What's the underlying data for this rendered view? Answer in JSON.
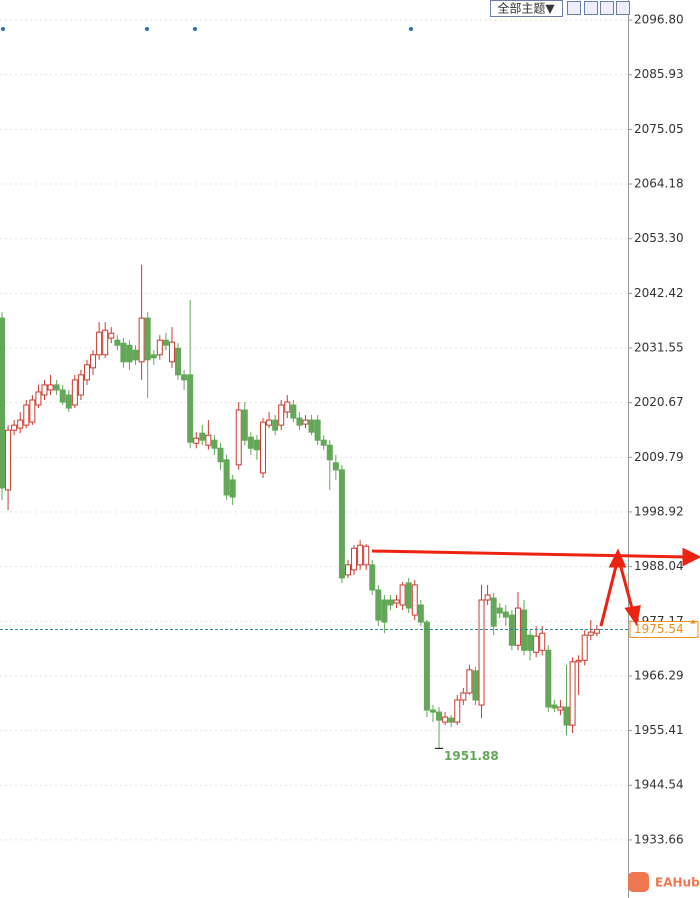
{
  "toolbar": {
    "theme_button": "全部主题▼"
  },
  "watermark": "EAHub",
  "chart_data": {
    "type": "candlestick",
    "up_color": "#cc3a2e",
    "down_color": "#62a858",
    "grid": true,
    "ylim": [
      1922.1,
      2100.8
    ],
    "yticks": [
      {
        "value": 2096.8,
        "label": "2096.80"
      },
      2085.93,
      2075.05,
      2064.18,
      {
        "value": 2053.3,
        "label": "2053.30"
      },
      2042.42,
      2031.55,
      2020.67,
      2009.79,
      1998.92,
      1988.04,
      1977.17,
      1966.29,
      1955.41,
      1944.54,
      1933.66
    ],
    "current_price": 1975.54,
    "current_price_color": "#f08c1c",
    "low_annotation": 1951.88,
    "open": [
      2037.5,
      2003.3,
      2015.2,
      2015.6,
      2016.2,
      2016.8,
      2020.2,
      2022.2,
      2023.2,
      2024.2,
      2023.2,
      2022.2,
      2020.2,
      2022.2,
      2025.2,
      2027.6,
      2030.2,
      2030.2,
      2033.5,
      2033.1,
      2032.5,
      2032.1,
      2031.1,
      2028.8,
      2037.5,
      2030.2,
      2030.2,
      2033.1,
      2028.8,
      2031.5,
      2026.2,
      2026.2,
      2012.6,
      2014.6,
      2012.2,
      2013.2,
      2011.6,
      2009.3,
      2005.3,
      2008.3,
      2019.2,
      2013.8,
      2013.2,
      2006.7,
      2016.2,
      2017.2,
      2016.2,
      2018.8,
      2020.2,
      2017.6,
      2016.4,
      2017.2,
      2017.2,
      2013.2,
      2012.2,
      2008.7,
      2007.3,
      1986.4,
      1987.4,
      1988.4,
      1988.4,
      1988.4,
      1983.4,
      1981.4,
      1981.4,
      1980.8,
      1980.4,
      1984.8,
      1978.4,
      1980.4,
      1977.0,
      1959.5,
      1959.1,
      1957.1,
      1957.9,
      1957.1,
      1961.5,
      1962.9,
      1967.3,
      1960.5,
      1981.4,
      1981.8,
      1979.8,
      1979.0,
      1978.4,
      1972.4,
      1979.4,
      1974.4,
      1971.0,
      1971.4,
      1971.4,
      1960.5,
      1959.5,
      1960.1,
      1956.5,
      1969.1,
      1969.4,
      1974.4,
      1974.8
    ],
    "high": [
      2038.7,
      2016.2,
      2017.2,
      2018.8,
      2021.2,
      2022.2,
      2024.2,
      2025.2,
      2026.2,
      2025.2,
      2024.2,
      2023.2,
      2026.2,
      2027.2,
      2029.2,
      2031.1,
      2036.7,
      2036.7,
      2035.7,
      2034.1,
      2033.5,
      2033.1,
      2032.1,
      2048.1,
      2038.7,
      2031.1,
      2034.1,
      2034.5,
      2035.7,
      2032.5,
      2027.2,
      2041.1,
      2014.8,
      2016.2,
      2017.2,
      2014.2,
      2012.6,
      2010.3,
      2006.3,
      2020.8,
      2020.8,
      2014.8,
      2014.2,
      2017.6,
      2018.8,
      2018.2,
      2021.2,
      2022.2,
      2021.2,
      2018.8,
      2018.2,
      2018.2,
      2018.2,
      2014.2,
      2013.2,
      2010.3,
      2008.3,
      1989.4,
      1992.3,
      1993.3,
      1992.5,
      1989.4,
      1984.4,
      1982.4,
      1982.4,
      1982.4,
      1985.0,
      1985.8,
      1985.4,
      1981.4,
      1977.4,
      1960.5,
      1960.1,
      1959.1,
      1958.5,
      1962.5,
      1963.9,
      1968.5,
      1968.1,
      1984.4,
      1984.4,
      1982.8,
      1980.8,
      1980.4,
      1979.4,
      1983.0,
      1981.4,
      1975.4,
      1976.2,
      1976.2,
      1972.4,
      1961.5,
      1961.5,
      1968.5,
      1970.0,
      1970.4,
      1975.4,
      1977.4,
      1976.4
    ],
    "low": [
      2001.3,
      1999.3,
      2014.2,
      2014.6,
      2015.6,
      2016.2,
      2019.6,
      2021.2,
      2022.2,
      2022.2,
      2020.2,
      2018.8,
      2019.6,
      2021.2,
      2024.2,
      2026.2,
      2029.2,
      2029.6,
      2032.5,
      2031.1,
      2027.6,
      2027.2,
      2028.2,
      2025.2,
      2021.6,
      2028.2,
      2029.2,
      2031.1,
      2027.6,
      2025.2,
      2023.2,
      2011.6,
      2011.6,
      2012.2,
      2011.3,
      2010.3,
      2007.3,
      2001.3,
      2000.3,
      2007.3,
      2012.2,
      2010.3,
      2009.3,
      2005.7,
      2015.6,
      2014.2,
      2015.2,
      2017.6,
      2016.8,
      2015.2,
      2015.6,
      2014.2,
      2012.2,
      2011.3,
      2003.3,
      2005.3,
      1984.8,
      1985.8,
      1986.4,
      1987.4,
      1987.4,
      1982.4,
      1976.2,
      1974.8,
      1979.4,
      1979.8,
      1979.4,
      1978.8,
      1977.4,
      1976.2,
      1958.1,
      1957.1,
      1951.88,
      1956.5,
      1956.1,
      1956.5,
      1960.5,
      1962.5,
      1960.5,
      1957.9,
      1980.4,
      1974.4,
      1977.8,
      1976.2,
      1971.4,
      1971.4,
      1970.4,
      1969.4,
      1970.0,
      1970.4,
      1959.1,
      1959.1,
      1958.5,
      1954.5,
      1954.9,
      1962.5,
      1968.4,
      1973.4,
      1974.2
    ],
    "close": [
      2003.7,
      2015.2,
      2016.2,
      2017.2,
      2020.2,
      2021.2,
      2022.8,
      2024.2,
      2024.2,
      2023.2,
      2020.8,
      2019.6,
      2025.2,
      2026.2,
      2028.2,
      2030.2,
      2034.7,
      2035.1,
      2034.5,
      2032.1,
      2028.8,
      2028.8,
      2029.2,
      2037.5,
      2029.2,
      2029.6,
      2033.1,
      2032.1,
      2032.7,
      2026.2,
      2025.2,
      2012.8,
      2013.6,
      2013.2,
      2014.2,
      2011.6,
      2008.9,
      2002.3,
      2001.9,
      2019.2,
      2013.2,
      2011.6,
      2011.3,
      2016.8,
      2017.2,
      2015.2,
      2020.2,
      2020.8,
      2017.6,
      2016.2,
      2017.2,
      2014.8,
      2013.2,
      2012.2,
      2009.3,
      2007.3,
      1985.8,
      1988.4,
      1991.7,
      1992.3,
      1992.1,
      1983.4,
      1977.4,
      1977.0,
      1980.4,
      1981.4,
      1984.4,
      1979.8,
      1984.4,
      1977.0,
      1959.5,
      1959.1,
      1957.5,
      1958.1,
      1957.1,
      1961.5,
      1962.9,
      1967.5,
      1961.5,
      1981.4,
      1982.4,
      1976.2,
      1978.8,
      1978.0,
      1972.4,
      1979.8,
      1971.4,
      1971.4,
      1974.2,
      1974.8,
      1960.1,
      1959.9,
      1960.1,
      1956.5,
      1969.1,
      1969.4,
      1974.4,
      1975.0,
      1975.54
    ]
  }
}
